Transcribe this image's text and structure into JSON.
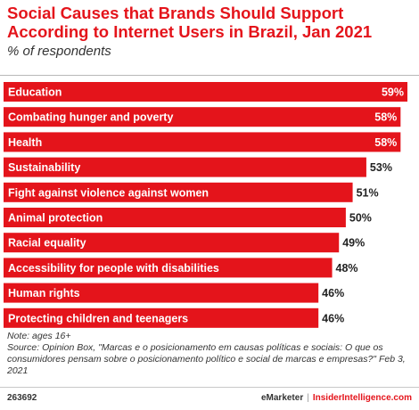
{
  "title": "Social Causes that Brands Should Support According to Internet Users in Brazil, Jan 2021",
  "subtitle": "% of respondents",
  "chart_data": {
    "type": "bar",
    "orientation": "horizontal",
    "categories": [
      "Education",
      "Combating hunger and poverty",
      "Health",
      "Sustainability",
      "Fight against violence against women",
      "Animal protection",
      "Racial equality",
      "Accessibility for people with disabilities",
      "Human rights",
      "Protecting children and teenagers"
    ],
    "values": [
      59,
      58,
      58,
      53,
      51,
      50,
      49,
      48,
      46,
      46
    ],
    "value_labels": [
      "59%",
      "58%",
      "58%",
      "53%",
      "51%",
      "50%",
      "49%",
      "48%",
      "46%",
      "46%"
    ],
    "unit": "%",
    "bar_color": "#e4141b",
    "xlim": [
      0,
      59
    ]
  },
  "notes": {
    "note": "Note: ages 16+",
    "source": "Source: Opinion Box, \"Marcas e o posicionamento em causas políticas e sociais: O que os consumidores pensam sobre o posicionamento político e social de marcas e empresas?\" Feb 3, 2021"
  },
  "footer": {
    "chart_id": "263692",
    "brand": "eMarketer",
    "brand2": "InsiderIntelligence.com"
  }
}
